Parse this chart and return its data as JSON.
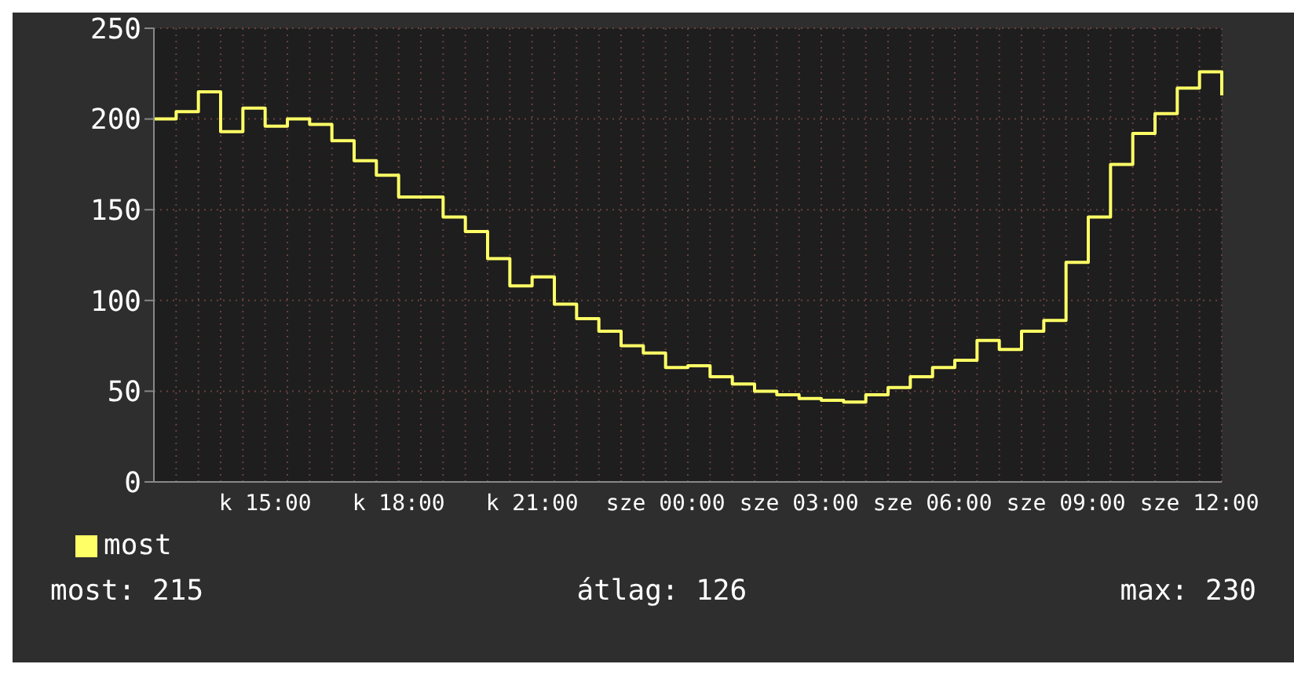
{
  "chart_data": {
    "type": "step",
    "categories": [
      null,
      null,
      null,
      null,
      null,
      "k 15:00",
      null,
      null,
      null,
      null,
      null,
      "k 18:00",
      null,
      null,
      null,
      null,
      null,
      "k 21:00",
      null,
      null,
      null,
      null,
      null,
      "sze 00:00",
      null,
      null,
      null,
      null,
      null,
      "sze 03:00",
      null,
      null,
      null,
      null,
      null,
      "sze 06:00",
      null,
      null,
      null,
      null,
      null,
      "sze 09:00",
      null,
      null,
      null,
      null,
      null,
      "sze 12:00",
      null
    ],
    "series": [
      {
        "name": "most",
        "color": "#ffff66",
        "values": [
          200,
          204,
          215,
          193,
          206,
          196,
          200,
          197,
          188,
          177,
          169,
          157,
          157,
          146,
          138,
          123,
          108,
          113,
          98,
          90,
          83,
          75,
          71,
          63,
          64,
          58,
          54,
          50,
          48,
          46,
          45,
          44,
          48,
          52,
          58,
          63,
          67,
          78,
          73,
          83,
          89,
          121,
          146,
          175,
          192,
          203,
          217,
          226,
          213
        ]
      }
    ],
    "ylim": [
      0,
      250
    ],
    "yticks": [
      0,
      50,
      100,
      150,
      200,
      250
    ],
    "grid": true,
    "legend": "bottom left",
    "marker": "none",
    "line_style": "solid",
    "annotations": [
      "most: 215",
      "átlag: 126",
      "max: 230"
    ]
  }
}
